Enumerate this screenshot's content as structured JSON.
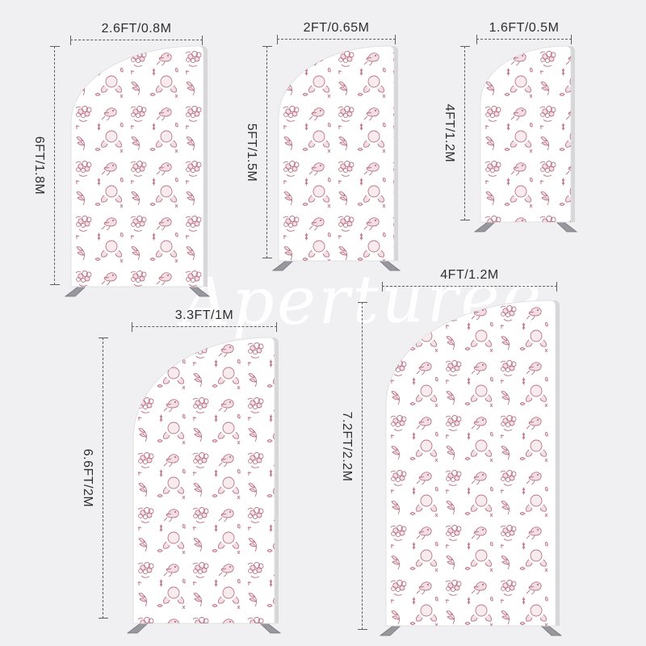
{
  "watermark": "Aperturee",
  "colors": {
    "background": "#f0f0f2",
    "pattern_rose": "#b4657a",
    "pattern_fill": "#f0dce2",
    "dimension_line": "#5f5f63",
    "label_text": "#2e2e2e",
    "panel_white": "#ffffff",
    "panel_side": "#d7d7da",
    "foot_gray": "#97979d"
  },
  "arches": [
    {
      "name": "chiara-arch-6ft",
      "width_label": "2.6FT/0.8M",
      "height_label": "6FT/1.8M"
    },
    {
      "name": "chiara-arch-5ft",
      "width_label": "2FT/0.65M",
      "height_label": "5FT/1.5M"
    },
    {
      "name": "chiara-arch-4ft",
      "width_label": "1.6FT/0.5M",
      "height_label": "4FT/1.2M"
    },
    {
      "name": "chiara-arch-6-6ft",
      "width_label": "3.3FT/1M",
      "height_label": "6.6FT/2M"
    },
    {
      "name": "chiara-arch-7-2ft",
      "width_label": "4FT/1.2M",
      "height_label": "7.2FT/2.2M"
    }
  ]
}
